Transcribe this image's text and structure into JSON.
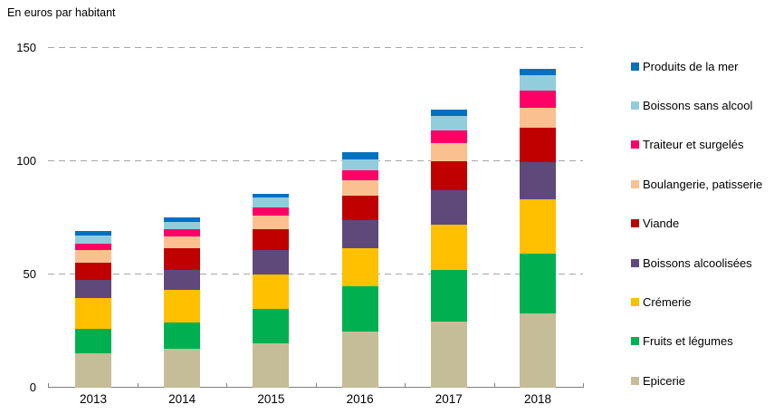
{
  "page": {
    "background": "#ffffff",
    "title": "En euros par habitant"
  },
  "chart_data": {
    "type": "bar",
    "stacked": true,
    "title": "En euros par habitant",
    "xlabel": "",
    "ylabel": "En euros par habitant",
    "categories": [
      "2013",
      "2014",
      "2015",
      "2016",
      "2017",
      "2018"
    ],
    "series": [
      {
        "name": "Epicerie",
        "color": "#C4BD97",
        "values": [
          15,
          17,
          19.5,
          24.5,
          29,
          32.5
        ]
      },
      {
        "name": "Fruits et légumes",
        "color": "#00B050",
        "values": [
          11,
          11.5,
          15,
          20,
          23,
          26.5
        ]
      },
      {
        "name": "Crémerie",
        "color": "#FFC000",
        "values": [
          13.5,
          14.5,
          15.5,
          17,
          20,
          24
        ]
      },
      {
        "name": "Boissons alcoolisées",
        "color": "#5F497A",
        "values": [
          8,
          9,
          10.5,
          12.5,
          15,
          16.5
        ]
      },
      {
        "name": "Viande",
        "color": "#C00000",
        "values": [
          7.5,
          9.5,
          9.5,
          10.5,
          13,
          15
        ]
      },
      {
        "name": "Boulangerie, patisserie",
        "color": "#FAC090",
        "values": [
          5.5,
          5,
          6,
          7,
          8,
          9
        ]
      },
      {
        "name": "Traiteur et surgelés",
        "color": "#FF0066",
        "values": [
          3,
          3.5,
          3.5,
          4.5,
          5.5,
          7.5
        ]
      },
      {
        "name": "Boissons sans alcool",
        "color": "#92CDDC",
        "values": [
          3.5,
          3,
          4.5,
          4.5,
          6.5,
          7
        ]
      },
      {
        "name": "Produits de la mer",
        "color": "#0070C0",
        "values": [
          2,
          2,
          1.5,
          3.5,
          2.5,
          2.5
        ]
      }
    ],
    "series_order": "bottom-to-top",
    "legend_order_top_to_bottom": [
      "Produits de la mer",
      "Boissons sans alcool",
      "Traiteur et surgelés",
      "Boulangerie, patisserie",
      "Viande",
      "Boissons alcoolisées",
      "Crémerie",
      "Fruits et légumes",
      "Epicerie"
    ],
    "legend_position": "right",
    "ylim": [
      0,
      150
    ],
    "yticks": [
      0,
      50,
      100,
      150
    ],
    "grid": "horizontal-dashed",
    "grid_color": "#A6A6A6",
    "axis_color": "#808080",
    "text_color": "#000000"
  }
}
